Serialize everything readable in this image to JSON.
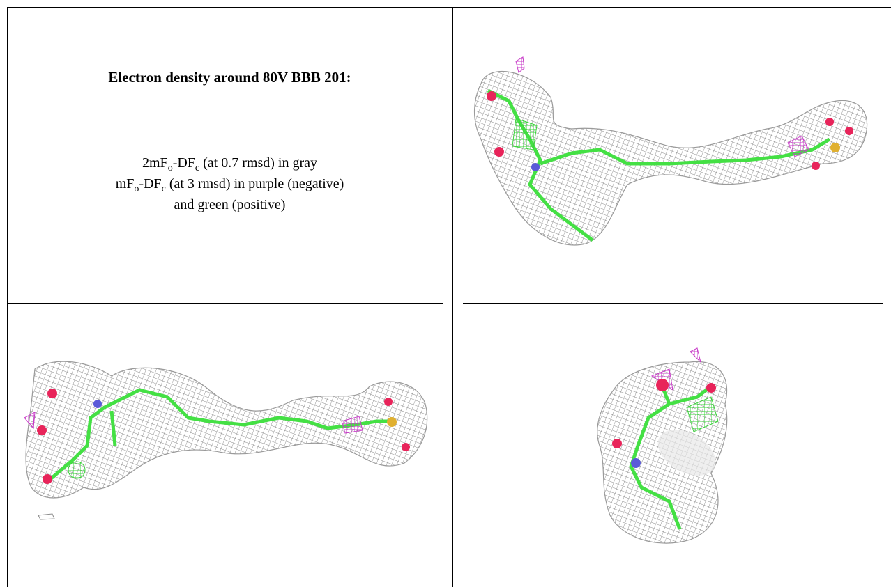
{
  "title": "Electron density around 80V BBB 201:",
  "caption": [
    [
      {
        "text": "2mF"
      },
      {
        "text": "o",
        "sub": true
      },
      {
        "text": "-DF"
      },
      {
        "text": "c",
        "sub": true
      },
      {
        "text": " (at 0.7 rmsd) in gray"
      }
    ],
    [
      {
        "text": "mF"
      },
      {
        "text": "o",
        "sub": true
      },
      {
        "text": "-DF"
      },
      {
        "text": "c",
        "sub": true
      },
      {
        "text": " (at 3 rmsd) in purple (negative)"
      }
    ],
    [
      {
        "text": "and green (positive)"
      }
    ]
  ]
}
